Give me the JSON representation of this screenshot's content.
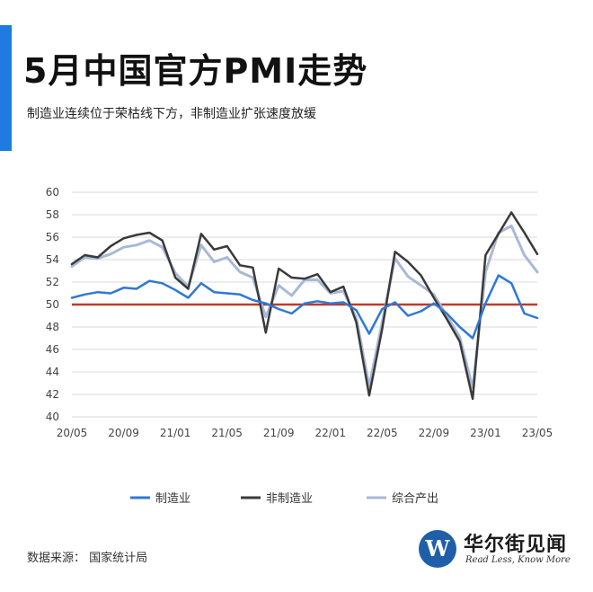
{
  "header": {
    "title": "5月中国官方PMI走势",
    "subtitle": "制造业连续位于荣枯线下方，非制造业扩张速度放缓"
  },
  "footer": {
    "source": "数据来源：  国家统计局",
    "logo_name": "华尔街见闻",
    "logo_tagline": "Read Less, Know More",
    "logo_letter": "W"
  },
  "colors": {
    "accent": "#1f7be0",
    "manufacturing": "#2f78d6",
    "non_manufacturing": "#3a3a3a",
    "composite": "#a9b8d8",
    "reference_line": "#c0392b"
  },
  "chart_data": {
    "type": "line",
    "x": [
      "20/05",
      "20/06",
      "20/07",
      "20/08",
      "20/09",
      "20/10",
      "20/11",
      "20/12",
      "21/01",
      "21/02",
      "21/03",
      "21/04",
      "21/05",
      "21/06",
      "21/07",
      "21/08",
      "21/09",
      "21/10",
      "21/11",
      "21/12",
      "22/01",
      "22/02",
      "22/03",
      "22/04",
      "22/05",
      "22/06",
      "22/07",
      "22/08",
      "22/09",
      "22/10",
      "22/11",
      "22/12",
      "23/01",
      "23/02",
      "23/03",
      "23/04",
      "23/05"
    ],
    "x_tick_labels": [
      "20/05",
      "20/09",
      "21/01",
      "21/05",
      "21/09",
      "22/01",
      "22/05",
      "22/09",
      "23/01",
      "23/05"
    ],
    "x_tick_indices": [
      0,
      4,
      8,
      12,
      16,
      20,
      24,
      28,
      32,
      36
    ],
    "ylim": [
      40,
      60
    ],
    "yticks": [
      40,
      42,
      44,
      46,
      48,
      50,
      52,
      54,
      56,
      58,
      60
    ],
    "grid": true,
    "legend_position": "bottom",
    "reference_line": 50,
    "series": [
      {
        "name": "制造业",
        "color_key": "manufacturing",
        "values": [
          50.6,
          50.9,
          51.1,
          51.0,
          51.5,
          51.4,
          52.1,
          51.9,
          51.3,
          50.6,
          51.9,
          51.1,
          51.0,
          50.9,
          50.4,
          50.1,
          49.6,
          49.2,
          50.1,
          50.3,
          50.1,
          50.2,
          49.5,
          47.4,
          49.6,
          50.2,
          49.0,
          49.4,
          50.1,
          49.2,
          48.0,
          47.0,
          50.1,
          52.6,
          51.9,
          49.2,
          48.8
        ]
      },
      {
        "name": "非制造业",
        "color_key": "non_manufacturing",
        "values": [
          53.6,
          54.4,
          54.2,
          55.2,
          55.9,
          56.2,
          56.4,
          55.7,
          52.4,
          51.4,
          56.3,
          54.9,
          55.2,
          53.5,
          53.3,
          47.5,
          53.2,
          52.4,
          52.3,
          52.7,
          51.1,
          51.6,
          48.4,
          41.9,
          47.8,
          54.7,
          53.8,
          52.6,
          50.6,
          48.7,
          46.7,
          41.6,
          54.4,
          56.3,
          58.2,
          56.4,
          54.5
        ]
      },
      {
        "name": "综合产出",
        "color_key": "composite",
        "values": [
          53.4,
          54.2,
          54.1,
          54.5,
          55.1,
          55.3,
          55.7,
          55.1,
          52.8,
          51.6,
          55.3,
          53.8,
          54.2,
          52.9,
          52.4,
          48.9,
          51.7,
          50.8,
          52.2,
          52.2,
          51.0,
          51.2,
          48.8,
          42.7,
          48.4,
          54.1,
          52.5,
          51.7,
          50.9,
          49.0,
          47.1,
          42.6,
          52.9,
          56.4,
          57.0,
          54.4,
          52.9
        ]
      }
    ]
  }
}
